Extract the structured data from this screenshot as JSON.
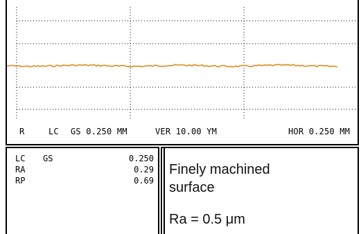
{
  "instrument": {
    "trace_color": "#e08a1e",
    "status_line": {
      "mode": "R",
      "lc_label": "LC",
      "gs_label": "GS 0.250 MM",
      "ver_label": "VER 10.00 YM",
      "hor_label": "HOR 0.250 MM"
    },
    "grid": "dotted",
    "profile_trace": "nearly flat line with small roughness"
  },
  "parameters": {
    "header": {
      "name": "LC",
      "name2": "GS",
      "value": "0.250"
    },
    "rows": [
      {
        "name": "RA",
        "value": "0.29"
      },
      {
        "name": "RP",
        "value": "0.69"
      }
    ]
  },
  "description": {
    "line1": "Finely machined",
    "line2": "surface",
    "ra_text": "Ra = 0.5 μm"
  }
}
